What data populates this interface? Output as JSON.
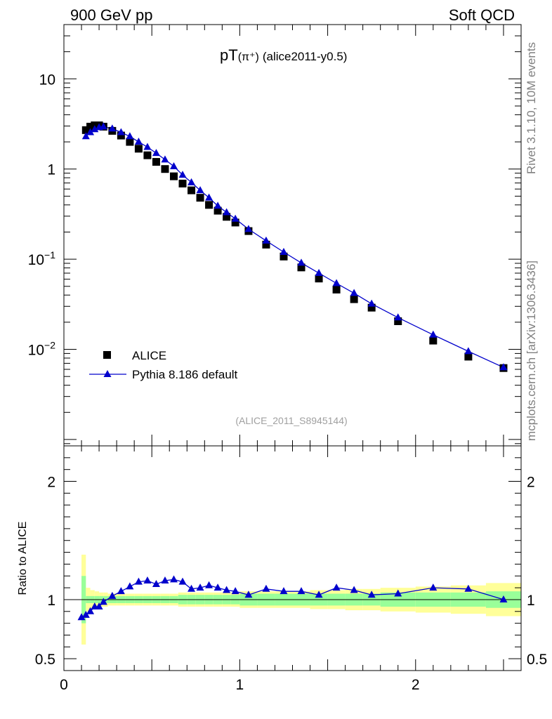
{
  "header": {
    "left": "900 GeV pp",
    "right": "Soft QCD"
  },
  "side": {
    "rivet": "Rivet 3.1.10,  10M events",
    "mcplots": "mcplots.cern.ch [arXiv:1306.3436]"
  },
  "colors": {
    "data": "#000000",
    "mc": "#0000cc",
    "band_inner": "#99ff99",
    "band_outer": "#ffff99"
  },
  "chart_data": [
    {
      "type": "scatter",
      "title_main": "pT",
      "title_paren": "(π⁺)",
      "title_tag": "(alice2011-y0.5)",
      "watermark": "(ALICE_2011_S8945144)",
      "yscale": "log",
      "ylim": [
        0.00085,
        40
      ],
      "xlim": [
        0,
        2.6
      ],
      "y_ticks": [
        {
          "v": 10,
          "base": "10",
          "exp": ""
        },
        {
          "v": 1,
          "base": "1",
          "exp": ""
        },
        {
          "v": 0.1,
          "base": "10",
          "exp": "−1"
        },
        {
          "v": 0.01,
          "base": "10",
          "exp": "−2"
        }
      ],
      "legend": [
        {
          "name": "ALICE",
          "marker": "square"
        },
        {
          "name": "Pythia 8.186 default",
          "marker": "triangle"
        }
      ],
      "x": [
        0.125,
        0.15,
        0.175,
        0.2,
        0.225,
        0.275,
        0.325,
        0.375,
        0.425,
        0.475,
        0.525,
        0.575,
        0.625,
        0.675,
        0.725,
        0.775,
        0.825,
        0.875,
        0.925,
        0.975,
        1.05,
        1.15,
        1.25,
        1.35,
        1.45,
        1.55,
        1.65,
        1.75,
        1.9,
        2.1,
        2.3,
        2.5
      ],
      "series": [
        {
          "name": "ALICE",
          "values": [
            2.7,
            2.95,
            3.05,
            3.05,
            2.95,
            2.65,
            2.35,
            2.0,
            1.68,
            1.42,
            1.2,
            1.0,
            0.83,
            0.69,
            0.58,
            0.48,
            0.4,
            0.345,
            0.295,
            0.255,
            0.205,
            0.145,
            0.107,
            0.081,
            0.061,
            0.046,
            0.036,
            0.029,
            0.0205,
            0.0125,
            0.0083,
            0.0062
          ]
        },
        {
          "name": "Pythia 8.186 default",
          "values": [
            2.3,
            2.55,
            2.75,
            2.9,
            2.95,
            2.8,
            2.55,
            2.3,
            2.0,
            1.75,
            1.5,
            1.27,
            1.07,
            0.86,
            0.71,
            0.58,
            0.48,
            0.39,
            0.33,
            0.28,
            0.215,
            0.16,
            0.12,
            0.091,
            0.07,
            0.054,
            0.042,
            0.032,
            0.0225,
            0.0145,
            0.0095,
            0.0063
          ]
        }
      ]
    },
    {
      "type": "line",
      "ylabel": "Ratio to ALICE",
      "ylim": [
        0.4,
        2.3
      ],
      "xlim": [
        0,
        2.6
      ],
      "y_ticks": [
        {
          "v": 2,
          "label": "2"
        },
        {
          "v": 1,
          "label": "1"
        },
        {
          "v": 0.5,
          "label": "0.5"
        }
      ],
      "x_ticks": [
        {
          "v": 0,
          "label": "0"
        },
        {
          "v": 1,
          "label": "1"
        },
        {
          "v": 2,
          "label": "2"
        }
      ],
      "x": [
        0.1,
        0.125,
        0.15,
        0.175,
        0.2,
        0.225,
        0.275,
        0.325,
        0.375,
        0.425,
        0.475,
        0.525,
        0.575,
        0.625,
        0.675,
        0.725,
        0.775,
        0.825,
        0.875,
        0.925,
        0.975,
        1.05,
        1.15,
        1.25,
        1.35,
        1.45,
        1.55,
        1.65,
        1.75,
        1.9,
        2.1,
        2.3,
        2.5
      ],
      "values": [
        0.85,
        0.87,
        0.9,
        0.94,
        0.94,
        0.98,
        1.03,
        1.07,
        1.11,
        1.15,
        1.16,
        1.13,
        1.16,
        1.17,
        1.15,
        1.09,
        1.1,
        1.12,
        1.1,
        1.08,
        1.07,
        1.04,
        1.09,
        1.07,
        1.07,
        1.04,
        1.1,
        1.08,
        1.04,
        1.05,
        1.1,
        1.09,
        1.0
      ],
      "band": {
        "x_edges": [
          0.1,
          0.125,
          0.15,
          0.175,
          0.2,
          0.225,
          0.25,
          0.3,
          0.35,
          0.4,
          0.45,
          0.5,
          0.55,
          0.6,
          0.65,
          0.7,
          0.75,
          0.8,
          0.85,
          0.9,
          0.95,
          1.0,
          1.1,
          1.2,
          1.3,
          1.4,
          1.5,
          1.6,
          1.7,
          1.8,
          2.0,
          2.2,
          2.4,
          2.6
        ],
        "inner": [
          0.2,
          0.03,
          0.03,
          0.03,
          0.03,
          0.03,
          0.03,
          0.03,
          0.03,
          0.03,
          0.03,
          0.03,
          0.03,
          0.03,
          0.04,
          0.04,
          0.04,
          0.04,
          0.04,
          0.04,
          0.04,
          0.05,
          0.05,
          0.05,
          0.05,
          0.05,
          0.05,
          0.05,
          0.05,
          0.06,
          0.06,
          0.06,
          0.07
        ],
        "outer": [
          0.38,
          0.1,
          0.08,
          0.07,
          0.06,
          0.06,
          0.05,
          0.05,
          0.05,
          0.05,
          0.05,
          0.05,
          0.05,
          0.05,
          0.06,
          0.06,
          0.06,
          0.06,
          0.06,
          0.06,
          0.06,
          0.07,
          0.07,
          0.07,
          0.07,
          0.08,
          0.08,
          0.09,
          0.09,
          0.1,
          0.11,
          0.12,
          0.14
        ]
      }
    }
  ]
}
